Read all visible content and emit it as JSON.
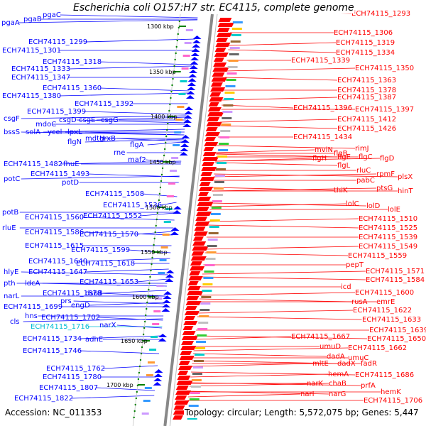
{
  "title": "Escherichia coli O157:H7 str. EC4115, complete genome",
  "footer": {
    "accession": "Accession: NC_011353",
    "summary": "Topology: circular; Length: 5,572,075 bp; Genes: 5,447"
  },
  "colors": {
    "left_strand": "#0000ff",
    "right_strand": "#ff0000",
    "highlight": "#00bcd4",
    "ruler_tick": "#008000"
  },
  "ruler_labels": [
    "1300 kbp",
    "1350 kbp",
    "1400 kbp",
    "1450 kbp",
    "1500 kbp",
    "1550 kbp",
    "1600 kbp",
    "1650 kbp",
    "1700 kbp"
  ],
  "left_labels": [
    "pgaA",
    "pgaB",
    "pgaC",
    "ECH74115_1299",
    "ECH74115_1301",
    "ECH74115_1318",
    "ECH74115_1333",
    "ECH74115_1347",
    "ECH74115_1360",
    "ECH74115_1380",
    "ECH74115_1392",
    "ECH74115_1399",
    "csgF",
    "mdoC",
    "csgD",
    "csgE",
    "csgG",
    "bssS",
    "solA",
    "ycel",
    "lpxL",
    "flgN",
    "mdtH",
    "grxB",
    "flgA",
    "rne",
    "maf2",
    "ECH74115_1482",
    "fhuE",
    "ECH74115_1493",
    "potC",
    "potD",
    "ECH74115_1508",
    "ECH74115_1536",
    "potB",
    "ECH74115_1560",
    "ECH74115_1552",
    "rluE",
    "ECH74115_1586",
    "ECH74115_1570",
    "ECH74115_1615",
    "ECH74115_1599",
    "ECH74115_1640",
    "ECH74115_1618",
    "hlyE",
    "ECH74115_1647",
    "pth",
    "ldcA",
    "ECH74115_1653",
    "narL",
    "ECH74115_1678",
    "dsbB",
    "ECH74115_1699",
    "prs",
    "engD",
    "hns",
    "ECH74115_1702",
    "cls",
    "ECH74115_1716",
    "narX",
    "ECH74115_1734",
    "adhE",
    "ECH74115_1746",
    "ECH74115_1762",
    "ECH74115_1780",
    "ECH74115_1807",
    "ECH74115_1822"
  ],
  "right_labels": [
    "ECH74115_1293",
    "ECH74115_1306",
    "ECH74115_1319",
    "ECH74115_1334",
    "ECH74115_1339",
    "ECH74115_1350",
    "ECH74115_1363",
    "ECH74115_1378",
    "ECH74115_1387",
    "ECH74115_1396",
    "ECH74115_1397",
    "ECH74115_1412",
    "ECH74115_1426",
    "ECH74115_1434",
    "mviN",
    "rimJ",
    "flgB",
    "flgH",
    "flgE",
    "flgC",
    "flgD",
    "flgL",
    "rluC",
    "rpmF",
    "plsX",
    "pabC",
    "ptsG",
    "thiK",
    "hinT",
    "lolC",
    "lolD",
    "lolE",
    "ECH74115_1510",
    "ECH74115_1525",
    "ECH74115_1539",
    "ECH74115_1549",
    "ECH74115_1559",
    "pepT",
    "ECH74115_1571",
    "ECH74115_1584",
    "icd",
    "ECH74115_1600",
    "rusA",
    "emrE",
    "ECH74115_1622",
    "ECH74115_1633",
    "ECH74115_1639",
    "ECH74115_1667",
    "ECH74115_1650",
    "umuD",
    "ECH74115_1662",
    "dadA",
    "umuC",
    "mltE",
    "dadX",
    "fadR",
    "hemA",
    "ECH74115_1686",
    "narK",
    "chaB",
    "prfA",
    "hemK",
    "narI",
    "narG",
    "ECH74115_1706"
  ]
}
